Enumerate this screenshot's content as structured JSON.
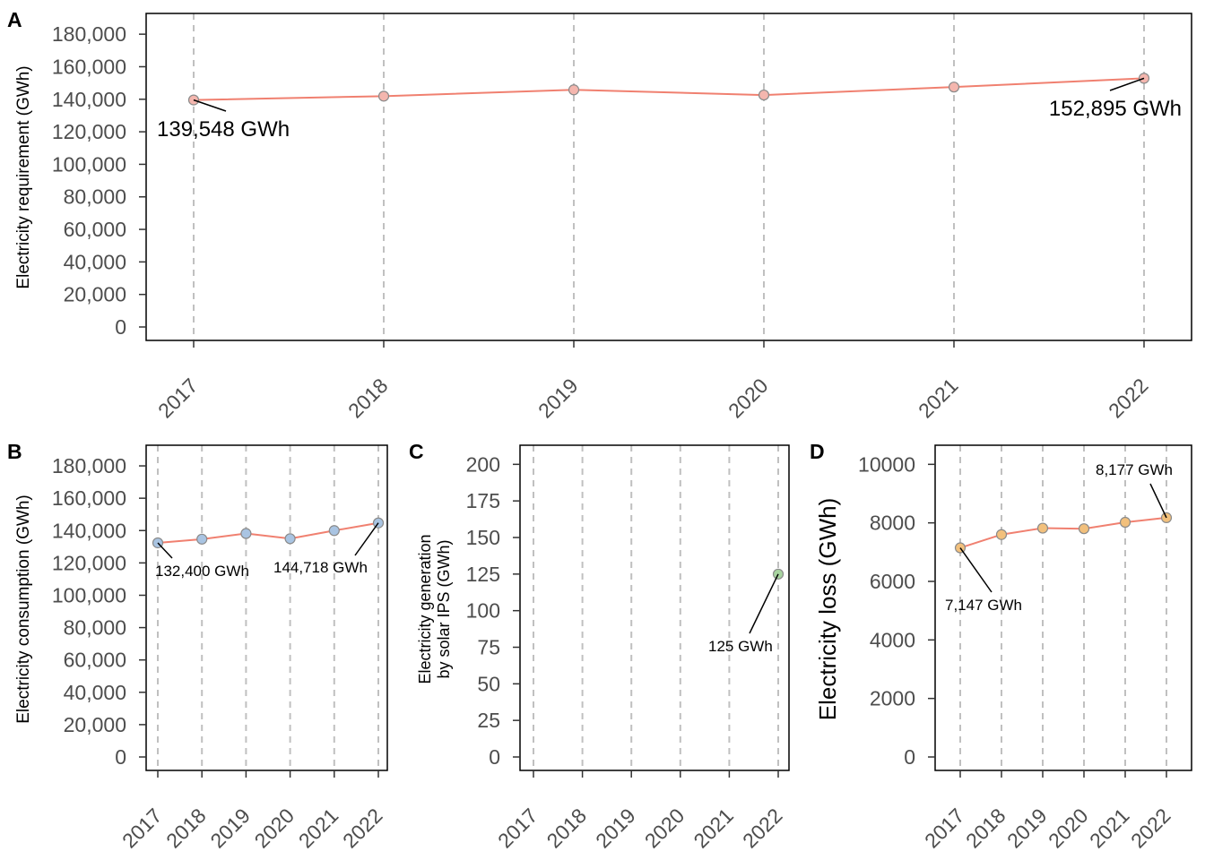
{
  "chart_data": [
    {
      "panel": "A",
      "type": "line",
      "categories": [
        "2017",
        "2018",
        "2019",
        "2020",
        "2021",
        "2022"
      ],
      "series": [
        {
          "values": [
            139548,
            141900,
            145800,
            142600,
            147500,
            152895
          ]
        }
      ],
      "ylabel": "Electricity requirement (GWh)",
      "ylim": [
        0,
        190000
      ],
      "yticks": [
        0,
        20000,
        40000,
        60000,
        80000,
        100000,
        120000,
        140000,
        160000,
        180000
      ],
      "ytick_labels": [
        "0",
        "20,000",
        "40,000",
        "60,000",
        "80,000",
        "100,000",
        "120,000",
        "140,000",
        "160,000",
        "180,000"
      ],
      "grid": "vertical dashed",
      "line_color": "#f08070",
      "point_color": "#f4b6ae",
      "annotations": [
        {
          "index": 0,
          "text": "139,548 GWh"
        },
        {
          "index": 5,
          "text": "152,895 GWh"
        }
      ]
    },
    {
      "panel": "B",
      "type": "line",
      "categories": [
        "2017",
        "2018",
        "2019",
        "2020",
        "2021",
        "2022"
      ],
      "series": [
        {
          "values": [
            132400,
            134700,
            138200,
            135000,
            140000,
            144718
          ]
        }
      ],
      "ylabel": "Electricity consumption (GWh)",
      "ylim": [
        0,
        190000
      ],
      "yticks": [
        0,
        20000,
        40000,
        60000,
        80000,
        100000,
        120000,
        140000,
        160000,
        180000
      ],
      "ytick_labels": [
        "0",
        "20,000",
        "40,000",
        "60,000",
        "80,000",
        "100,000",
        "120,000",
        "140,000",
        "160,000",
        "180,000"
      ],
      "grid": "vertical dashed",
      "line_color": "#f08070",
      "point_color": "#a9c4e2",
      "annotations": [
        {
          "index": 0,
          "text": "132,400 GWh"
        },
        {
          "index": 5,
          "text": "144,718 GWh"
        }
      ]
    },
    {
      "panel": "C",
      "type": "scatter",
      "categories": [
        "2017",
        "2018",
        "2019",
        "2020",
        "2021",
        "2022"
      ],
      "series": [
        {
          "values": [
            null,
            null,
            null,
            null,
            null,
            125
          ]
        }
      ],
      "ylabel_lines": [
        "Electricity generation",
        "by solar IPS (GWh)"
      ],
      "ylim": [
        0,
        210
      ],
      "yticks": [
        0,
        25,
        50,
        75,
        100,
        125,
        150,
        175,
        200
      ],
      "ytick_labels": [
        "0",
        "25",
        "50",
        "75",
        "100",
        "125",
        "150",
        "175",
        "200"
      ],
      "grid": "vertical dashed",
      "line_color": "#f08070",
      "point_color": "#a8d4a0",
      "annotations": [
        {
          "index": 5,
          "text": "125 GWh"
        }
      ]
    },
    {
      "panel": "D",
      "type": "line",
      "categories": [
        "2017",
        "2018",
        "2019",
        "2020",
        "2021",
        "2022"
      ],
      "series": [
        {
          "values": [
            7147,
            7600,
            7820,
            7800,
            8020,
            8177
          ]
        }
      ],
      "ylabel": "Electricity loss (GWh)",
      "ylim": [
        0,
        10500
      ],
      "yticks": [
        0,
        2000,
        4000,
        6000,
        8000,
        10000
      ],
      "ytick_labels": [
        "0",
        "2000",
        "4000",
        "6000",
        "8000",
        "10000"
      ],
      "grid": "vertical dashed",
      "line_color": "#f08070",
      "point_color": "#f2c07c",
      "annotations": [
        {
          "index": 0,
          "text": "7,147 GWh"
        },
        {
          "index": 5,
          "text": "8,177 GWh"
        }
      ]
    }
  ]
}
